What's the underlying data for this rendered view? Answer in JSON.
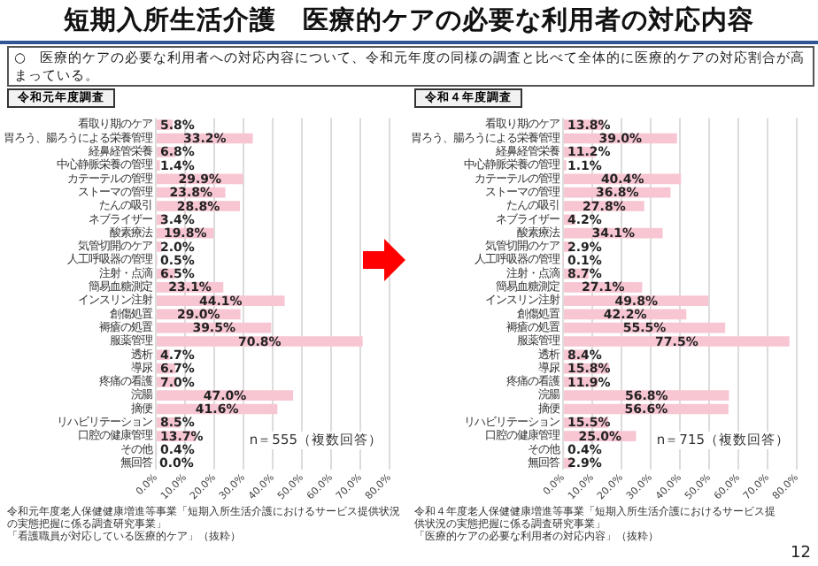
{
  "chart_data": [
    {
      "type": "bar",
      "orientation": "horizontal",
      "title": "令和元年度調査",
      "color": "#f7c6d2",
      "grid": "x",
      "legend": false,
      "categories": [
        "看取り期のケア",
        "胃ろう、腸ろうによる栄養管理",
        "経鼻経管栄養",
        "中心静脈栄養の管理",
        "カテーテルの管理",
        "ストーマの管理",
        "たんの吸引",
        "ネブライザー",
        "酸素療法",
        "気管切開のケア",
        "人工呼吸器の管理",
        "注射・点滴",
        "簡易血糖測定",
        "インスリン注射",
        "創傷処置",
        "褥瘡の処置",
        "服薬管理",
        "透析",
        "導尿",
        "疼痛の看護",
        "浣腸",
        "摘便",
        "リハビリテーション",
        "口腔の健康管理",
        "その他",
        "無回答"
      ],
      "values": [
        5.8,
        33.2,
        6.8,
        1.4,
        29.9,
        23.8,
        28.8,
        3.4,
        19.8,
        2.0,
        0.5,
        6.5,
        23.1,
        44.1,
        29.0,
        39.5,
        70.8,
        4.7,
        6.7,
        7.0,
        47.0,
        41.6,
        8.5,
        13.7,
        0.4,
        0.0
      ],
      "value_labels": [
        "5.8%",
        "33.2%",
        "6.8%",
        "1.4%",
        "29.9%",
        "23.8%",
        "28.8%",
        "3.4%",
        "19.8%",
        "2.0%",
        "0.5%",
        "6.5%",
        "23.1%",
        "44.1%",
        "29.0%",
        "39.5%",
        "70.8%",
        "4.7%",
        "6.7%",
        "7.0%",
        "47.0%",
        "41.6%",
        "8.5%",
        "13.7%",
        "0.4%",
        "0.0%"
      ],
      "xlim": [
        0,
        80
      ],
      "xticks": [
        {
          "value": 0,
          "label": "0.0%"
        },
        {
          "value": 10,
          "label": "10.0%"
        },
        {
          "value": 20,
          "label": "20.0%"
        },
        {
          "value": 30,
          "label": "30.0%"
        },
        {
          "value": 40,
          "label": "40.0%"
        },
        {
          "value": 50,
          "label": "50.0%"
        },
        {
          "value": 60,
          "label": "60.0%"
        },
        {
          "value": 70,
          "label": "70.0%"
        },
        {
          "value": 80,
          "label": "80.0%"
        }
      ],
      "annotations": [
        "短期入所生活介護　医療的ケアの必要な利用者の対応内容",
        "○　医療的ケアの必要な利用者への対応内容について、令和元年度の同様の調査と比べて全体的に医療的ケアの対応割合が高まっている。",
        "n＝555（複数回答）",
        "令和元年度老人保健健康増進等事業「短期入所生活介護におけるサービス提供状況の実態把握に係る調査研究事業」",
        "「看護職員が対応している医療的ケア」（抜粋）"
      ]
    },
    {
      "type": "bar",
      "orientation": "horizontal",
      "title": "令和４年度調査",
      "color": "#f7c6d2",
      "grid": "x",
      "legend": false,
      "categories": [
        "看取り期のケア",
        "胃ろう、腸ろうによる栄養管理",
        "経鼻経管栄養",
        "中心静脈栄養の管理",
        "カテーテルの管理",
        "ストーマの管理",
        "たんの吸引",
        "ネブライザー",
        "酸素療法",
        "気管切開のケア",
        "人工呼吸器の管理",
        "注射・点滴",
        "簡易血糖測定",
        "インスリン注射",
        "創傷処置",
        "褥瘡の処置",
        "服薬管理",
        "透析",
        "導尿",
        "疼痛の看護",
        "浣腸",
        "摘便",
        "リハビリテーション",
        "口腔の健康管理",
        "その他",
        "無回答"
      ],
      "values": [
        13.8,
        39.0,
        11.2,
        1.1,
        40.4,
        36.8,
        27.8,
        4.2,
        34.1,
        2.9,
        0.1,
        8.7,
        27.1,
        49.8,
        42.2,
        55.5,
        77.5,
        8.4,
        15.8,
        11.9,
        56.8,
        56.6,
        15.5,
        25.0,
        0.4,
        2.9
      ],
      "value_labels": [
        "13.8%",
        "39.0%",
        "11.2%",
        "1.1%",
        "40.4%",
        "36.8%",
        "27.8%",
        "4.2%",
        "34.1%",
        "2.9%",
        "0.1%",
        "8.7%",
        "27.1%",
        "49.8%",
        "42.2%",
        "55.5%",
        "77.5%",
        "8.4%",
        "15.8%",
        "11.9%",
        "56.8%",
        "56.6%",
        "15.5%",
        "25.0%",
        "0.4%",
        "2.9%"
      ],
      "xlim": [
        0,
        80
      ],
      "xticks": [
        {
          "value": 0,
          "label": "0.0%"
        },
        {
          "value": 10,
          "label": "10.0%"
        },
        {
          "value": 20,
          "label": "20.0%"
        },
        {
          "value": 30,
          "label": "30.0%"
        },
        {
          "value": 40,
          "label": "40.0%"
        },
        {
          "value": 50,
          "label": "50.0%"
        },
        {
          "value": 60,
          "label": "60.0%"
        },
        {
          "value": 70,
          "label": "70.0%"
        },
        {
          "value": 80,
          "label": "80.0%"
        }
      ],
      "annotations": [
        "n＝715（複数回答）",
        "令和４年度老人保健健康増進等事業「短期入所生活介護におけるサービス提供状況の実態把握に係る調査研究事業」",
        "「医療的ケアの必要な利用者の対応内容」（抜粋）",
        "12"
      ]
    }
  ]
}
